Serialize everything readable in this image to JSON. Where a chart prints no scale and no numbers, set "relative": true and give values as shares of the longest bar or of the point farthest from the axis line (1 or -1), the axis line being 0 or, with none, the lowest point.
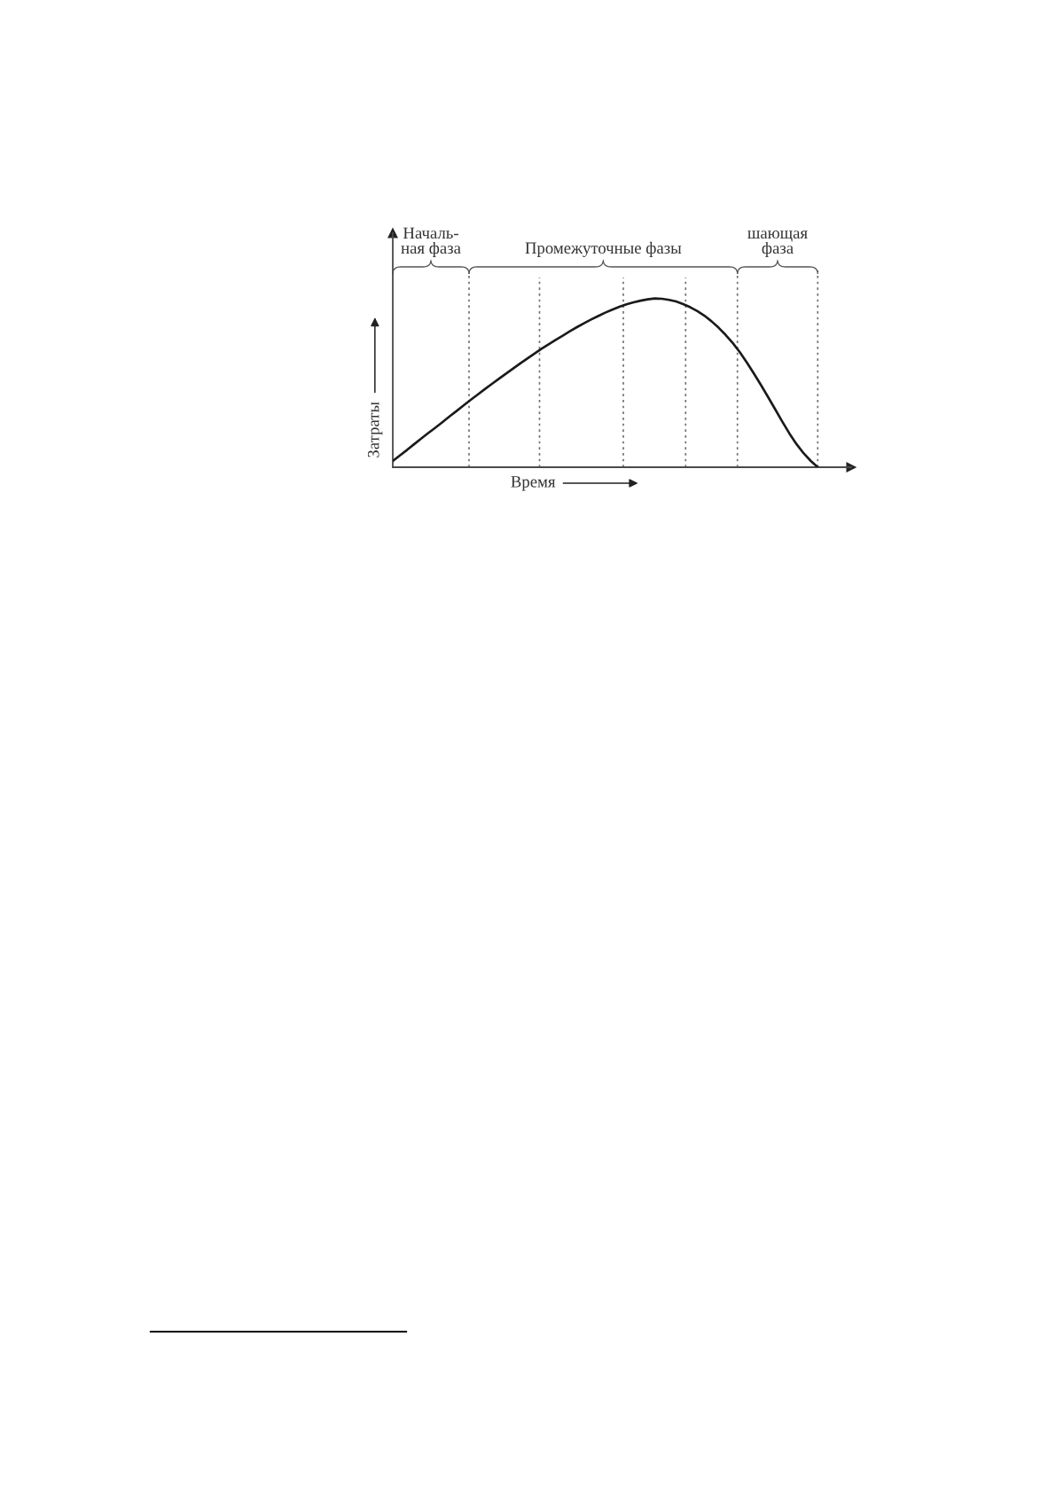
{
  "chart_data": {
    "type": "line",
    "relative": true,
    "xlabel": "Время",
    "ylabel": "Затраты",
    "tick_labels": false,
    "marker": "none",
    "line_style": "solid",
    "grid": "x",
    "annotations": [
      "Началь-\nная фаза",
      "Промежуточные фазы",
      "шающая\nфаза"
    ],
    "categories": [
      null,
      null,
      null,
      null,
      null,
      null,
      null,
      null,
      null,
      null,
      null,
      null,
      null,
      null,
      null,
      null,
      null,
      null,
      null,
      null,
      null,
      null,
      null,
      null,
      null,
      null,
      null,
      null,
      null,
      null,
      null,
      null,
      null,
      null,
      null,
      null,
      null,
      null,
      null,
      null,
      null,
      null,
      null,
      null,
      null,
      null,
      null,
      null,
      null,
      null,
      null,
      null,
      null,
      null,
      null,
      null,
      null,
      null,
      null,
      null,
      null
    ],
    "series": [
      {
        "color": "#1a1a1a",
        "values": [
          0.037,
          0.07,
          0.102,
          0.136,
          0.169,
          0.202,
          0.234,
          0.267,
          0.301,
          0.333,
          0.366,
          0.399,
          0.431,
          0.463,
          0.494,
          0.525,
          0.555,
          0.585,
          0.615,
          0.644,
          0.673,
          0.702,
          0.728,
          0.755,
          0.78,
          0.806,
          0.83,
          0.853,
          0.875,
          0.896,
          0.916,
          0.934,
          0.951,
          0.965,
          0.977,
          0.987,
          0.995,
          1.0,
          0.998,
          0.992,
          0.982,
          0.967,
          0.948,
          0.925,
          0.898,
          0.865,
          0.827,
          0.784,
          0.736,
          0.682,
          0.62,
          0.554,
          0.486,
          0.415,
          0.343,
          0.27,
          0.2,
          0.137,
          0.083,
          0.038,
          0.0
        ]
      }
    ]
  }
}
